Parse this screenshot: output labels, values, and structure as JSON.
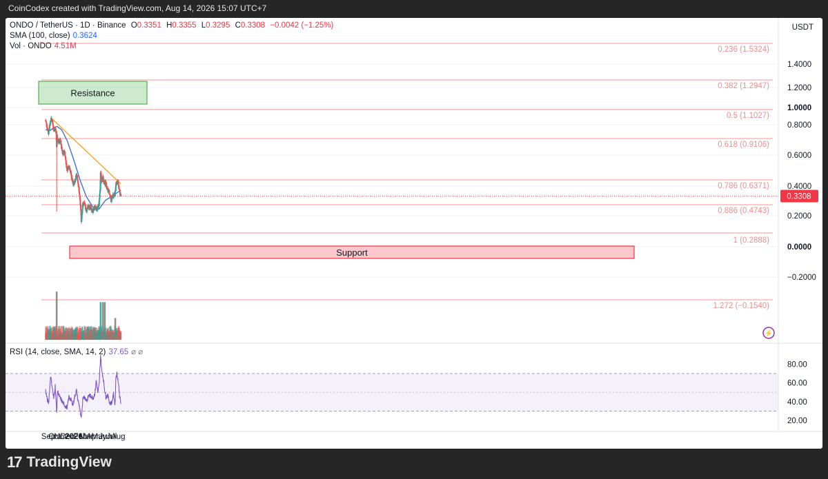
{
  "header": {
    "text": "CoinCodex created with TradingView.com, Aug 14, 2026 15:07 UTC+7"
  },
  "legend": {
    "symbol": "ONDO / TetherUS · 1D · Binance",
    "o_label": "O",
    "o_value": "0.3351",
    "h_label": "H",
    "h_value": "0.3355",
    "l_label": "L",
    "l_value": "0.3295",
    "c_label": "C",
    "c_value": "0.3308",
    "change": "−0.0042 (−1.25%)",
    "sma_label": "SMA (100, close)",
    "sma_value": "0.3624",
    "vol_label": "Vol · ONDO",
    "vol_value": "4.51M",
    "rsi_label": "RSI (14, close, SMA, 14, 2)",
    "rsi_value": "37.65",
    "rsi_extra": "⌀ ⌀"
  },
  "currency": "USDT",
  "last_price_tag": "0.3308",
  "footer": {
    "brand": "TradingView",
    "logo_icon": "tradingview-logo-icon"
  },
  "colors": {
    "up": "#26a69a",
    "down": "#ef5350",
    "sma": "#3f6fd8",
    "trend": "#f5a623",
    "fib": "#f28b8b",
    "rsi": "#7e57c2",
    "rsi_band": "#ede7f6"
  },
  "chart_data": [
    {
      "type": "candlestick",
      "title": "ONDO / TetherUS · 1D · Binance",
      "y_axis_ticks": [
        "1.4000",
        "1.2000",
        "1.0000",
        "0.8000",
        "0.6000",
        "0.4000",
        "0.2000",
        "0.0000",
        "−0.2000"
      ],
      "x_axis_ticks": [
        "Sep",
        "Oct",
        "Nov",
        "Dec",
        "2026",
        "Feb",
        "Mar",
        "Apr",
        "May",
        "Jun",
        "Jul",
        "Aug"
      ],
      "y_scale": "log",
      "close_path": [
        [
          "Aug 19",
          1.08
        ],
        [
          "Aug 27",
          0.96
        ],
        [
          "Sep 2",
          0.89
        ],
        [
          "Sep 10",
          1.03
        ],
        [
          "Sep 14",
          1.12
        ],
        [
          "Sep 20",
          1.07
        ],
        [
          "Sep 27",
          0.92
        ],
        [
          "Oct 5",
          0.95
        ],
        [
          "Oct 9",
          0.88
        ],
        [
          "Oct 11",
          0.72
        ],
        [
          "Oct 13",
          0.84
        ],
        [
          "Oct 20",
          0.76
        ],
        [
          "Oct 28",
          0.79
        ],
        [
          "Nov 4",
          0.7
        ],
        [
          "Nov 10",
          0.64
        ],
        [
          "Nov 17",
          0.68
        ],
        [
          "Nov 24",
          0.57
        ],
        [
          "Nov 30",
          0.49
        ],
        [
          "Dec 8",
          0.53
        ],
        [
          "Dec 15",
          0.5
        ],
        [
          "Dec 22",
          0.43
        ],
        [
          "Dec 31",
          0.4
        ],
        [
          "Jan 8",
          0.42
        ],
        [
          "Jan 15",
          0.47
        ],
        [
          "Jan 22",
          0.4
        ],
        [
          "Jan 30",
          0.32
        ],
        [
          "Feb 4",
          0.26
        ],
        [
          "Feb 6",
          0.22
        ],
        [
          "Feb 13",
          0.29
        ],
        [
          "Feb 21",
          0.3
        ],
        [
          "Mar 1",
          0.26
        ],
        [
          "Mar 10",
          0.28
        ],
        [
          "Mar 20",
          0.28
        ],
        [
          "Apr 1",
          0.26
        ],
        [
          "Apr 12",
          0.28
        ],
        [
          "Apr 22",
          0.27
        ],
        [
          "May 1",
          0.29
        ],
        [
          "May 7",
          0.36
        ],
        [
          "May 9",
          0.49
        ],
        [
          "May 14",
          0.41
        ],
        [
          "May 20",
          0.45
        ],
        [
          "May 26",
          0.4
        ],
        [
          "Jun 2",
          0.41
        ],
        [
          "Jun 9",
          0.37
        ],
        [
          "Jun 20",
          0.35
        ],
        [
          "Jun 28",
          0.31
        ],
        [
          "Jul 6",
          0.33
        ],
        [
          "Jul 16",
          0.34
        ],
        [
          "Jul 22",
          0.4
        ],
        [
          "Jul 30",
          0.42
        ],
        [
          "Aug 6",
          0.36
        ],
        [
          "Aug 14",
          0.3308
        ]
      ],
      "sma_100_path": [
        [
          "Aug 19",
          0.93
        ],
        [
          "Sep 10",
          0.92
        ],
        [
          "Sep 27",
          0.96
        ],
        [
          "Oct 13",
          0.98
        ],
        [
          "Nov 4",
          0.93
        ],
        [
          "Dec 1",
          0.78
        ],
        [
          "Jan 1",
          0.58
        ],
        [
          "Feb 1",
          0.42
        ],
        [
          "Mar 1",
          0.33
        ],
        [
          "Apr 1",
          0.28
        ],
        [
          "May 1",
          0.27
        ],
        [
          "Jun 1",
          0.31
        ],
        [
          "Jul 1",
          0.33
        ],
        [
          "Aug 14",
          0.3624
        ]
      ],
      "trendline": {
        "from": [
          "Sep 14",
          1.12
        ],
        "to": [
          "Aug 14",
          0.4
        ]
      },
      "fib_levels": [
        {
          "label": "0.236 (1.5324)",
          "value": 1.5324
        },
        {
          "label": "0.382 (1.2947)",
          "value": 1.2947
        },
        {
          "label": "0.5 (1.1027)",
          "value": 1.1027
        },
        {
          "label": "0.618 (0.9106)",
          "value": 0.9106
        },
        {
          "label": "0.786 (0.6371)",
          "value": 0.6371
        },
        {
          "label": "0.886 (0.4743)",
          "value": 0.4743
        },
        {
          "label": "1 (0.2888)",
          "value": 0.2888
        },
        {
          "label": "1.272 (−0.1540)",
          "value": -0.154
        }
      ],
      "zones": [
        {
          "label": "Resistance",
          "color": "#4caf50",
          "range": [
            1.29,
            1.58
          ],
          "from": "Aug 29",
          "to": "Oct 13"
        },
        {
          "label": "Support",
          "color": "#f23645",
          "range": [
            0.16,
            0.22
          ],
          "from": "Aug 31",
          "to": "Jun 11"
        }
      ],
      "last_price": 0.3308,
      "volume_spikes": [
        [
          "Oct 11",
          "max"
        ],
        [
          "May 9",
          "high"
        ],
        [
          "May 20",
          "high"
        ],
        [
          "May 29",
          "high"
        ],
        [
          "Jul 18",
          "medium"
        ]
      ]
    },
    {
      "type": "line",
      "title": "RSI (14, close, SMA, 14, 2)",
      "y_axis_ticks": [
        "80.00",
        "60.00",
        "40.00",
        "20.00"
      ],
      "bands": [
        70,
        30
      ],
      "ylim": [
        12,
        95
      ],
      "path": [
        [
          "Aug 19",
          52
        ],
        [
          "Aug 27",
          42
        ],
        [
          "Sep 3",
          39
        ],
        [
          "Sep 12",
          68
        ],
        [
          "Sep 20",
          55
        ],
        [
          "Sep 27",
          43
        ],
        [
          "Oct 4",
          57
        ],
        [
          "Oct 8",
          41
        ],
        [
          "Oct 11",
          28
        ],
        [
          "Oct 15",
          52
        ],
        [
          "Oct 25",
          45
        ],
        [
          "Nov 4",
          41
        ],
        [
          "Nov 12",
          38
        ],
        [
          "Nov 22",
          35
        ],
        [
          "Dec 1",
          34
        ],
        [
          "Dec 8",
          45
        ],
        [
          "Dec 18",
          42
        ],
        [
          "Dec 28",
          37
        ],
        [
          "Jan 8",
          48
        ],
        [
          "Jan 14",
          52
        ],
        [
          "Jan 20",
          42
        ],
        [
          "Jan 28",
          35
        ],
        [
          "Feb 3",
          24
        ],
        [
          "Feb 6",
          22
        ],
        [
          "Feb 14",
          46
        ],
        [
          "Feb 24",
          44
        ],
        [
          "Mar 5",
          41
        ],
        [
          "Mar 14",
          47
        ],
        [
          "Mar 24",
          46
        ],
        [
          "Apr 3",
          44
        ],
        [
          "Apr 12",
          49
        ],
        [
          "Apr 18",
          63
        ],
        [
          "Apr 26",
          49
        ],
        [
          "May 2",
          58
        ],
        [
          "May 9",
          90
        ],
        [
          "May 14",
          74
        ],
        [
          "May 20",
          67
        ],
        [
          "May 27",
          55
        ],
        [
          "Jun 3",
          45
        ],
        [
          "Jun 12",
          47
        ],
        [
          "Jun 22",
          38
        ],
        [
          "Jul 1",
          39
        ],
        [
          "Jul 10",
          48
        ],
        [
          "Jul 17",
          37
        ],
        [
          "Jul 21",
          67
        ],
        [
          "Jul 26",
          70
        ],
        [
          "Aug 1",
          62
        ],
        [
          "Aug 7",
          48
        ],
        [
          "Aug 14",
          37.65
        ]
      ]
    }
  ]
}
